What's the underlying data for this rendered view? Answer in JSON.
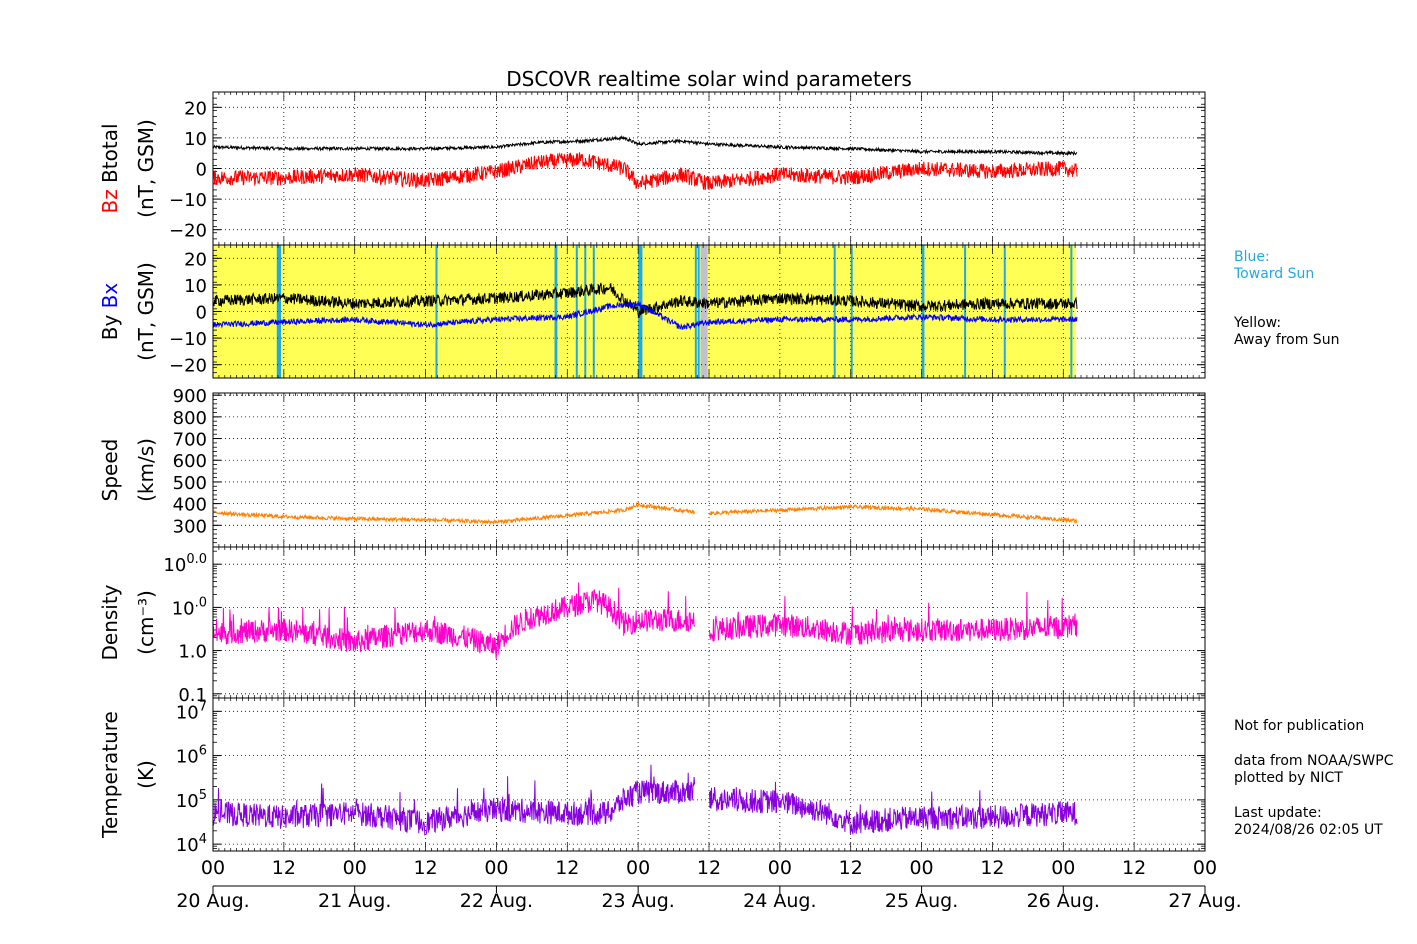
{
  "title": "DSCOVR realtime solar wind parameters",
  "colors": {
    "btotal": "#000000",
    "bz": "#ff0000",
    "by": "#000000",
    "bx": "#0000ff",
    "speed": "#ff8000",
    "density": "#ff00cc",
    "temperature": "#8800dd",
    "toward_sun": "#22aadd",
    "away_from_sun": "#ffff55",
    "no_data": "#c0c0d0"
  },
  "notes": {
    "blue_line1": "Blue:",
    "blue_line2": "Toward Sun",
    "yellow_line1": "Yellow:",
    "yellow_line2": "Away from Sun",
    "not_for_publication": "Not for publication",
    "data_from": "data from NOAA/SWPC",
    "plotted_by": "plotted by NICT",
    "last_update_label": "Last update:",
    "last_update": "2024/08/26 02:05 UT"
  },
  "chart_data": [
    {
      "type": "line",
      "panel": "magnetic-field-btotal-bz",
      "ylabel_parts": [
        "Bz",
        "Btotal"
      ],
      "ylabel_unit": "(nT, GSM)",
      "ylim": [
        -25,
        25
      ],
      "yticks": [
        "20",
        "10",
        "0",
        "−10",
        "−20"
      ],
      "ytick_values": [
        20,
        10,
        0,
        -10,
        -20
      ],
      "series": [
        {
          "name": "Btotal",
          "x_days": [
            0,
            0.5,
            1,
            1.5,
            2,
            2.3,
            2.6,
            2.9,
            3.0,
            3.3,
            3.5,
            4,
            4.5,
            5,
            5.5,
            6,
            6.1
          ],
          "values": [
            7,
            6.5,
            6.5,
            6.5,
            7,
            8.5,
            9,
            10,
            8,
            9,
            8,
            7,
            6.5,
            5.5,
            5.5,
            5,
            5
          ]
        },
        {
          "name": "Bz",
          "x_days": [
            0,
            0.5,
            1,
            1.5,
            2,
            2.3,
            2.6,
            2.9,
            3.0,
            3.3,
            3.5,
            4,
            4.5,
            5,
            5.5,
            6,
            6.1
          ],
          "values": [
            -3,
            -3,
            -2,
            -4,
            -1,
            2,
            3,
            0,
            -5,
            -2,
            -5,
            -2,
            -3,
            0,
            -1,
            0,
            -1
          ]
        }
      ]
    },
    {
      "type": "line",
      "panel": "magnetic-field-by-bx",
      "ylabel_parts": [
        "By",
        "Bx"
      ],
      "ylabel_unit": "(nT, GSM)",
      "ylim": [
        -25,
        25
      ],
      "yticks": [
        "20",
        "10",
        "0",
        "−10",
        "−20"
      ],
      "ytick_values": [
        20,
        10,
        0,
        -10,
        -20
      ],
      "series": [
        {
          "name": "By",
          "x_days": [
            0,
            0.5,
            1,
            1.5,
            2,
            2.5,
            2.8,
            3.0,
            3.3,
            3.5,
            4,
            4.5,
            5,
            5.5,
            6,
            6.1
          ],
          "values": [
            4,
            5,
            3,
            4,
            5,
            7,
            9,
            0,
            4,
            3,
            5,
            4,
            2,
            3,
            3,
            3
          ]
        },
        {
          "name": "Bx",
          "x_days": [
            0,
            0.5,
            1,
            1.5,
            2,
            2.5,
            2.8,
            3.0,
            3.3,
            3.5,
            4,
            4.5,
            5,
            5.5,
            6,
            6.1
          ],
          "values": [
            -5,
            -4,
            -3,
            -5,
            -3,
            -2,
            2,
            3,
            -6,
            -4,
            -3,
            -3,
            -2,
            -3,
            -3,
            -3
          ]
        }
      ],
      "sector_toward_sun_days": [
        [
          0.45,
          0.48
        ],
        [
          1.57,
          1.58
        ],
        [
          2.41,
          2.43
        ],
        [
          2.56,
          2.57
        ],
        [
          2.62,
          2.63
        ],
        [
          2.68,
          2.69
        ],
        [
          3.0,
          3.03
        ],
        [
          3.4,
          3.41
        ],
        [
          3.42,
          3.43
        ],
        [
          4.38,
          4.39
        ],
        [
          4.5,
          4.51
        ],
        [
          5.0,
          5.02
        ],
        [
          5.3,
          5.31
        ],
        [
          5.58,
          5.59
        ],
        [
          6.05,
          6.06
        ]
      ],
      "sector_gaps_days": [
        [
          3.44,
          3.49
        ]
      ],
      "sector_extent_days": [
        0,
        6.09
      ]
    },
    {
      "type": "line",
      "panel": "speed",
      "ylabel": "Speed",
      "ylabel_unit": "(km/s)",
      "ylim": [
        200,
        910
      ],
      "yticks": [
        "900",
        "800",
        "700",
        "600",
        "500",
        "400",
        "300"
      ],
      "ytick_values": [
        900,
        800,
        700,
        600,
        500,
        400,
        300
      ],
      "series": [
        {
          "name": "Speed",
          "x_days": [
            0,
            0.2,
            0.5,
            1,
            1.5,
            2,
            2.5,
            2.9,
            3.0,
            3.4,
            3.46,
            3.5,
            4,
            4.5,
            5,
            5.5,
            6,
            6.1
          ],
          "values": [
            360,
            350,
            340,
            330,
            325,
            315,
            345,
            370,
            395,
            360,
            null,
            355,
            370,
            385,
            375,
            350,
            325,
            320
          ]
        }
      ]
    },
    {
      "type": "line",
      "panel": "density",
      "ylabel": "Density",
      "ylabel_unit": "(cm⁻³)",
      "yscale": "log",
      "ylim": [
        0.08,
        250
      ],
      "yticks": [
        "100.0",
        "10.0",
        "1.0",
        "0.1"
      ],
      "ytick_values": [
        100,
        10,
        1,
        0.1
      ],
      "series": [
        {
          "name": "Density",
          "x_days": [
            0,
            0.5,
            1,
            1.5,
            2,
            2.2,
            2.5,
            2.7,
            2.9,
            3.0,
            3.4,
            3.46,
            3.5,
            4,
            4.5,
            5,
            5.5,
            6,
            6.1
          ],
          "values": [
            2.5,
            3,
            1.5,
            3,
            1.2,
            5,
            10,
            15,
            4,
            5,
            5,
            null,
            3,
            4,
            2.5,
            3,
            3,
            3.5,
            4
          ]
        }
      ]
    },
    {
      "type": "line",
      "panel": "temperature",
      "ylabel": "Temperature",
      "ylabel_unit": "(K)",
      "yscale": "log",
      "ylim": [
        7000,
        20000000
      ],
      "yticks": [
        "10⁷",
        "10⁶",
        "10⁵",
        "10⁴"
      ],
      "ytick_values": [
        10000000,
        1000000,
        100000,
        10000
      ],
      "series": [
        {
          "name": "Temperature",
          "x_days": [
            0,
            0.5,
            1,
            1.5,
            2,
            2.5,
            2.8,
            3.0,
            3.4,
            3.46,
            3.5,
            4,
            4.5,
            5,
            5.5,
            6,
            6.1
          ],
          "values": [
            50000,
            40000,
            50000,
            30000,
            60000,
            50000,
            50000,
            150000,
            150000,
            null,
            100000,
            90000,
            30000,
            40000,
            40000,
            50000,
            50000
          ]
        }
      ]
    }
  ],
  "x_axis": {
    "range_days": [
      0,
      7
    ],
    "hour_labels": [
      "00",
      "12",
      "00",
      "12",
      "00",
      "12",
      "00",
      "12",
      "00",
      "12",
      "00",
      "12",
      "00",
      "12",
      "00"
    ],
    "date_labels": [
      "20 Aug.",
      "21 Aug.",
      "22 Aug.",
      "23 Aug.",
      "24 Aug.",
      "25 Aug.",
      "26 Aug.",
      "27 Aug."
    ]
  }
}
